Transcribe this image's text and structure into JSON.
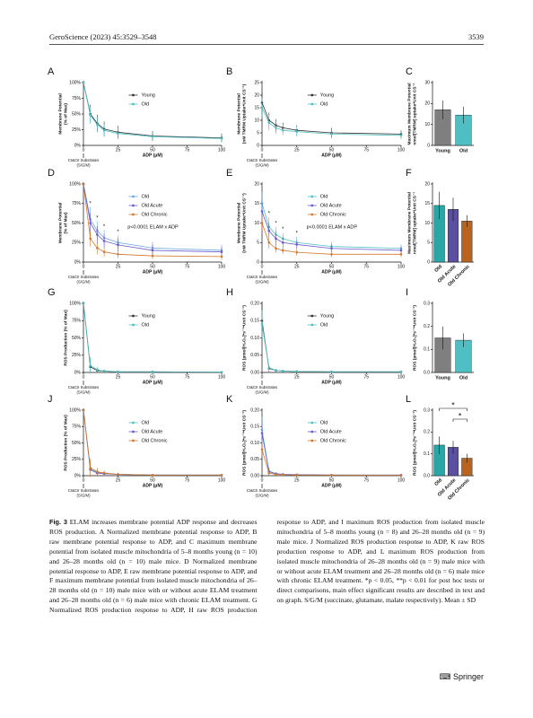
{
  "header": {
    "journal": "GeroScience (2023) 45:3529–3548",
    "page": "3539"
  },
  "chart_data": [
    {
      "type": "line",
      "label": "A",
      "ylabel": [
        "Membrane Potential",
        "(% of Max)"
      ],
      "xlabel": "ADP (μM)",
      "x_annotation": [
        "CI&CII Substrates",
        "(S/G/M)"
      ],
      "x": [
        0,
        5,
        10,
        15,
        25,
        50,
        100
      ],
      "xlim": [
        0,
        100
      ],
      "xticks": [
        0,
        25,
        50,
        75,
        100
      ],
      "ylim": [
        0,
        100
      ],
      "yticks": [
        {
          "value": 0,
          "label": "0%"
        },
        {
          "value": 25,
          "label": "25%"
        },
        {
          "value": 50,
          "label": "50%"
        },
        {
          "value": 75,
          "label": "75%"
        },
        {
          "value": 100,
          "label": "100%"
        }
      ],
      "series": [
        {
          "name": "Young",
          "color": "#333333",
          "values": [
            100,
            50,
            35,
            26,
            21,
            15,
            12
          ],
          "errors": [
            0,
            15,
            14,
            12,
            10,
            8,
            7
          ]
        },
        {
          "name": "Old",
          "color": "#4fbfc4",
          "values": [
            100,
            48,
            33,
            24,
            19,
            14,
            11
          ],
          "errors": [
            0,
            13,
            12,
            10,
            9,
            7,
            6
          ]
        }
      ]
    },
    {
      "type": "line",
      "label": "B",
      "ylabel": [
        "Membrane Potential",
        "(nM TMRM Uptake*Unit CS⁻¹)"
      ],
      "xlabel": "ADP (μM)",
      "x_annotation": [
        "CI&CII Substrates",
        "(S/G/M)"
      ],
      "x": [
        0,
        5,
        10,
        15,
        25,
        50,
        100
      ],
      "xlim": [
        0,
        100
      ],
      "xticks": [
        0,
        25,
        50,
        75,
        100
      ],
      "ylim": [
        0,
        25
      ],
      "yticks": [
        0,
        5,
        10,
        15,
        20,
        25
      ],
      "series": [
        {
          "name": "Young",
          "color": "#333333",
          "values": [
            17,
            10,
            8,
            7,
            6,
            5,
            4.5
          ],
          "errors": [
            4,
            3,
            2.5,
            2,
            2,
            2,
            1.5
          ]
        },
        {
          "name": "Old",
          "color": "#4fbfc4",
          "values": [
            15,
            9,
            7,
            6,
            5.5,
            4.5,
            4
          ],
          "errors": [
            4,
            3,
            2.5,
            2,
            2,
            1.5,
            1.5
          ]
        }
      ]
    },
    {
      "type": "bar",
      "label": "C",
      "ylabel": [
        "Maximum Membrane Potential",
        "nmol[TMRM] uptake*Unit CS⁻¹"
      ],
      "categories": [
        "Young",
        "Old"
      ],
      "values": [
        17,
        14.5
      ],
      "errors": [
        4.5,
        4
      ],
      "colors": [
        "#7f7f7f",
        "#4fbfc4"
      ],
      "ylim": [
        0,
        30
      ],
      "yticks": [
        0,
        10,
        20,
        30
      ]
    },
    {
      "type": "line",
      "label": "D",
      "ylabel": [
        "Membrane Potential",
        "(% of Max)"
      ],
      "xlabel": "ADP (μM)",
      "x_annotation": [
        "CI&CII Substrates",
        "(S/G/M)"
      ],
      "x": [
        0,
        5,
        10,
        15,
        25,
        50,
        100
      ],
      "xlim": [
        0,
        100
      ],
      "xticks": [
        0,
        25,
        50,
        75,
        100
      ],
      "ylim": [
        0,
        100
      ],
      "yticks": [
        {
          "value": 0,
          "label": "0%"
        },
        {
          "value": 25,
          "label": "25%"
        },
        {
          "value": 50,
          "label": "50%"
        },
        {
          "value": 75,
          "label": "75%"
        },
        {
          "value": 100,
          "label": "100%"
        }
      ],
      "stat_text": "p<0.0001 ELAM x ADP",
      "asterisks": [
        "*",
        "*",
        "*",
        "*"
      ],
      "series": [
        {
          "name": "Old",
          "color": "#6aa6dc",
          "values": [
            100,
            55,
            40,
            31,
            25,
            18,
            15
          ],
          "errors": [
            0,
            15,
            12,
            10,
            9,
            8,
            7
          ]
        },
        {
          "name": "Old Acute",
          "color": "#6a5acd",
          "values": [
            100,
            50,
            35,
            27,
            22,
            15,
            13
          ],
          "errors": [
            0,
            13,
            11,
            9,
            8,
            7,
            6
          ]
        },
        {
          "name": "Old Chronic",
          "color": "#d2782e",
          "values": [
            100,
            30,
            18,
            13,
            10,
            8,
            7
          ],
          "errors": [
            0,
            10,
            8,
            6,
            5,
            4,
            4
          ]
        }
      ]
    },
    {
      "type": "line",
      "label": "E",
      "ylabel": [
        "Membrane Potential",
        "(nM TMRM Uptake*Unit CS⁻¹)"
      ],
      "xlabel": "ADP (μM)",
      "x_annotation": [
        "CI&CII Substrates",
        "(S/G/M)"
      ],
      "x": [
        0,
        5,
        10,
        15,
        25,
        50,
        100
      ],
      "xlim": [
        0,
        100
      ],
      "xticks": [
        0,
        25,
        50,
        75,
        100
      ],
      "ylim": [
        0,
        20
      ],
      "yticks": [
        0,
        5,
        10,
        15,
        20
      ],
      "stat_text": "p<0.0001 ELAM x ADP",
      "asterisks": [
        "*",
        "*",
        "*",
        "*"
      ],
      "series": [
        {
          "name": "Old",
          "color": "#4fbfc4",
          "values": [
            15,
            9,
            7,
            6,
            5,
            4,
            3.5
          ],
          "errors": [
            3,
            2.5,
            2,
            1.5,
            1.5,
            1.2,
            1
          ]
        },
        {
          "name": "Old Acute",
          "color": "#6a5acd",
          "values": [
            13,
            8,
            6,
            5,
            4.5,
            3.5,
            3
          ],
          "errors": [
            3,
            2,
            1.8,
            1.5,
            1.2,
            1,
            1
          ]
        },
        {
          "name": "Old Chronic",
          "color": "#d2782e",
          "values": [
            10,
            5,
            3.5,
            3,
            2.5,
            2,
            2
          ],
          "errors": [
            2,
            1.5,
            1,
            1,
            0.8,
            0.7,
            0.7
          ]
        }
      ]
    },
    {
      "type": "bar",
      "label": "F",
      "ylabel": [
        "Maximum Membrane Potential",
        "nmol[TMRM] uptake*Unit CS⁻¹"
      ],
      "categories": [
        "Old",
        "Old Acute",
        "Old Chronic"
      ],
      "values": [
        14.5,
        13.5,
        10.5
      ],
      "errors": [
        3.5,
        3,
        1.5
      ],
      "colors": [
        "#2aa6a6",
        "#5a4fa0",
        "#b8641e"
      ],
      "ylim": [
        0,
        20
      ],
      "yticks": [
        0,
        5,
        10,
        15,
        20
      ]
    },
    {
      "type": "line",
      "label": "G",
      "ylabel": [
        "ROS Production (% of Max)"
      ],
      "xlabel": "ADP (μM)",
      "x_annotation": [
        "CI&CII Substrates",
        "(S/G/M)"
      ],
      "x": [
        0,
        5,
        10,
        15,
        25,
        50,
        100
      ],
      "xlim": [
        0,
        100
      ],
      "xticks": [
        0,
        25,
        50,
        75,
        100
      ],
      "ylim": [
        0,
        100
      ],
      "yticks": [
        {
          "value": 0,
          "label": "0%"
        },
        {
          "value": 25,
          "label": "25%"
        },
        {
          "value": 50,
          "label": "50%"
        },
        {
          "value": 75,
          "label": "75%"
        },
        {
          "value": 100,
          "label": "100%"
        }
      ],
      "series": [
        {
          "name": "Young",
          "color": "#333333",
          "values": [
            100,
            8,
            3,
            2,
            1,
            1,
            0.5
          ],
          "errors": [
            0,
            8,
            3,
            2,
            1,
            1,
            0.5
          ]
        },
        {
          "name": "Old",
          "color": "#4fbfc4",
          "values": [
            100,
            10,
            4,
            2,
            1,
            1,
            0.5
          ],
          "errors": [
            0,
            12,
            4,
            2,
            1,
            1,
            0.5
          ]
        }
      ]
    },
    {
      "type": "line",
      "label": "H",
      "ylabel": [
        "ROS (pmol[H₂O₂]*s⁻¹*Unit CS⁻¹)"
      ],
      "xlabel": "ADP (μM)",
      "x_annotation": [
        "CI&CII Substrates",
        "(S/G/M)"
      ],
      "x": [
        0,
        5,
        10,
        15,
        25,
        50,
        100
      ],
      "xlim": [
        0,
        100
      ],
      "xticks": [
        0,
        25,
        50,
        75,
        100
      ],
      "ylim": [
        0,
        0.2
      ],
      "yticks": [
        {
          "value": 0,
          "label": "0.00"
        },
        {
          "value": 0.05,
          "label": "0.05"
        },
        {
          "value": 0.1,
          "label": "0.10"
        },
        {
          "value": 0.15,
          "label": "0.15"
        },
        {
          "value": 0.2,
          "label": "0.20"
        }
      ],
      "series": [
        {
          "name": "Young",
          "color": "#333333",
          "values": [
            0.15,
            0.012,
            0.006,
            0.004,
            0.003,
            0.002,
            0.002
          ],
          "errors": [
            0.05,
            0.01,
            0.004,
            0.003,
            0.002,
            0.001,
            0.001
          ]
        },
        {
          "name": "Old",
          "color": "#4fbfc4",
          "values": [
            0.14,
            0.014,
            0.006,
            0.004,
            0.003,
            0.002,
            0.002
          ],
          "errors": [
            0.04,
            0.01,
            0.004,
            0.003,
            0.002,
            0.001,
            0.001
          ]
        }
      ]
    },
    {
      "type": "bar",
      "label": "I",
      "ylabel": [
        "ROS (pmol[H₂O₂]*s⁻¹*Unit CS⁻¹)"
      ],
      "categories": [
        "Young",
        "Old"
      ],
      "values": [
        0.15,
        0.14
      ],
      "errors": [
        0.05,
        0.03
      ],
      "colors": [
        "#7f7f7f",
        "#4fbfc4"
      ],
      "ylim": [
        0,
        0.3
      ],
      "yticks": [
        {
          "value": 0,
          "label": "0.0"
        },
        0.1,
        0.2,
        0.3
      ]
    },
    {
      "type": "line",
      "label": "J",
      "ylabel": [
        "ROS Production (% of Max)"
      ],
      "xlabel": "ADP (μM)",
      "x_annotation": [
        "CI&CII Substrates",
        "(S/G/M)"
      ],
      "x": [
        0,
        5,
        10,
        15,
        25,
        50,
        100
      ],
      "xlim": [
        0,
        100
      ],
      "xticks": [
        0,
        25,
        50,
        75,
        100
      ],
      "ylim": [
        0,
        100
      ],
      "yticks": [
        {
          "value": 0,
          "label": "0%"
        },
        {
          "value": 25,
          "label": "25%"
        },
        {
          "value": 50,
          "label": "50%"
        },
        {
          "value": 75,
          "label": "75%"
        },
        {
          "value": 100,
          "label": "100%"
        }
      ],
      "series": [
        {
          "name": "Old",
          "color": "#4fbfc4",
          "values": [
            100,
            10,
            5,
            3,
            2,
            1,
            1
          ],
          "errors": [
            0,
            12,
            5,
            3,
            2,
            1,
            1
          ]
        },
        {
          "name": "Old Acute",
          "color": "#6a5acd",
          "values": [
            100,
            9,
            4,
            3,
            2,
            1,
            1
          ],
          "errors": [
            0,
            10,
            4,
            3,
            2,
            1,
            1
          ]
        },
        {
          "name": "Old Chronic",
          "color": "#d2782e",
          "values": [
            100,
            12,
            6,
            4,
            2,
            1,
            1
          ],
          "errors": [
            0,
            14,
            6,
            4,
            2,
            1,
            1
          ]
        }
      ]
    },
    {
      "type": "line",
      "label": "K",
      "ylabel": [
        "ROS (pmol[H₂O₂]*s⁻¹*Unit CS⁻¹)"
      ],
      "xlabel": "ADP (μM)",
      "x_annotation": [
        "CI&CII Substrates",
        "(S/G/M)"
      ],
      "x": [
        0,
        5,
        10,
        15,
        25,
        50,
        100
      ],
      "xlim": [
        0,
        100
      ],
      "xticks": [
        0,
        25,
        50,
        75,
        100
      ],
      "ylim": [
        0,
        0.2
      ],
      "yticks": [
        {
          "value": 0,
          "label": "0.00"
        },
        {
          "value": 0.05,
          "label": "0.05"
        },
        {
          "value": 0.1,
          "label": "0.10"
        },
        {
          "value": 0.15,
          "label": "0.15"
        },
        {
          "value": 0.2,
          "label": "0.20"
        }
      ],
      "series": [
        {
          "name": "Old",
          "color": "#4fbfc4",
          "values": [
            0.14,
            0.014,
            0.006,
            0.004,
            0.003,
            0.002,
            0.002
          ],
          "errors": [
            0.04,
            0.01,
            0.004,
            0.003,
            0.002,
            0.001,
            0.001
          ]
        },
        {
          "name": "Old Acute",
          "color": "#6a5acd",
          "values": [
            0.13,
            0.012,
            0.006,
            0.004,
            0.003,
            0.002,
            0.002
          ],
          "errors": [
            0.04,
            0.01,
            0.004,
            0.003,
            0.002,
            0.001,
            0.001
          ]
        },
        {
          "name": "Old Chronic",
          "color": "#d2782e",
          "values": [
            0.08,
            0.008,
            0.004,
            0.003,
            0.002,
            0.002,
            0.001
          ],
          "errors": [
            0.02,
            0.006,
            0.003,
            0.002,
            0.001,
            0.001,
            0.001
          ]
        }
      ]
    },
    {
      "type": "bar",
      "label": "L",
      "ylabel": [
        "ROS (pmol[H₂O₂]*s⁻¹*Unit CS⁻¹)"
      ],
      "categories": [
        "Old",
        "Old Acute",
        "Old Chronic"
      ],
      "values": [
        0.14,
        0.13,
        0.08
      ],
      "errors": [
        0.04,
        0.03,
        0.02
      ],
      "colors": [
        "#2aa6a6",
        "#5a4fa0",
        "#b8641e"
      ],
      "ylim": [
        0,
        0.3
      ],
      "yticks": [
        {
          "value": 0,
          "label": "0.0"
        },
        0.1,
        0.2,
        0.3
      ],
      "brackets": [
        "*",
        "*"
      ]
    }
  ],
  "caption": {
    "label": "Fig. 3",
    "text": "ELAM increases membrane potential ADP response and decreases ROS production. A Normalized membrane potential response to ADP, B raw membrane potential response to ADP, and C maximum membrane potential from isolated muscle mitochondria of 5–8 months young (n = 10) and 26–28 months old (n = 10) male mice. D Normalized membrane potential response to ADP, E raw membrane potential response to ADP, and F maximum membrane potential from isolated muscle mitochondria of 26–28 months old (n = 10) male mice with or without acute ELAM treatment and 26–28 months old (n = 6) male mice with chronic ELAM treatment. G Normalized ROS production response to ADP, H raw ROS production response to ADP, and I maximum ROS production from isolated muscle mitochondria of 5–8 months young (n = 8) and 26–28 months old (n = 9) male mice. J Normalized ROS production response to ADP, K raw ROS production response to ADP, and L maximum ROS production from isolated muscle mitochondria of 26–28 months old (n = 9) male mice with or without acute ELAM treatment and 26–28 months old (n = 6) male mice with chronic ELAM treatment. *p < 0.05, **p < 0.01 for post hoc tests or direct comparisons, main effect significant results are described in text and on graph. S/G/M (succinate, glutamate, malate respectively). Mean ± SD"
  },
  "footer": {
    "publisher": "Springer"
  }
}
